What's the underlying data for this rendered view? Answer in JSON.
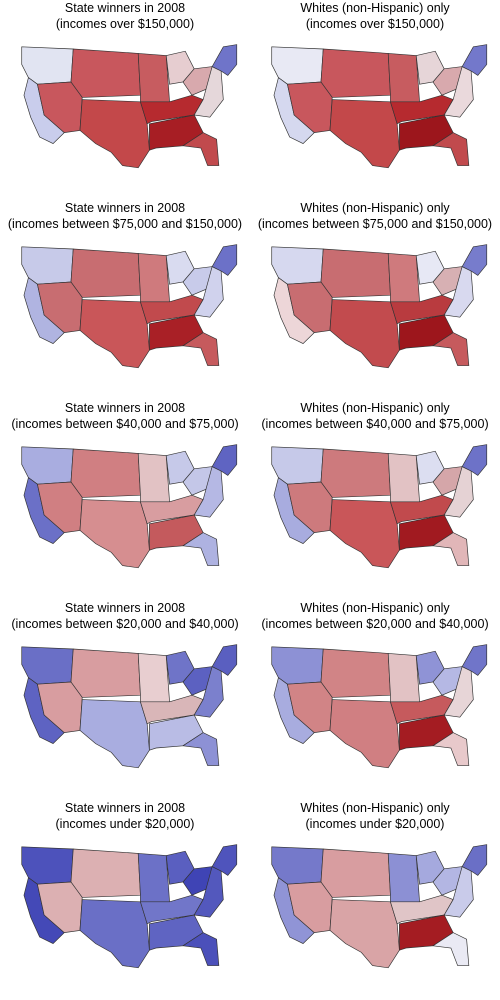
{
  "panels": [
    {
      "line1": "State winners in 2008",
      "line2": "(incomes over $150,000)",
      "c": {
        "west": "#e1e4f2",
        "cal": "#c9cdec",
        "mtn": "#c8575d",
        "plains": "#c75c60",
        "texas": "#c3484a",
        "mid": "#e6cdd0",
        "south": "#b62a2f",
        "deep": "#a71e24",
        "fl": "#c14a4d",
        "east": "#e5d7da",
        "ne": "#6f74c9",
        "gl": "#d8a9ad"
      }
    },
    {
      "line1": "Whites (non-Hispanic) only",
      "line2": "(incomes over $150,000)",
      "c": {
        "west": "#e8e9f4",
        "cal": "#d5d8ef",
        "mtn": "#c8575d",
        "plains": "#c75c60",
        "texas": "#c3484a",
        "mid": "#e6d5d8",
        "south": "#b62a2f",
        "deep": "#9c161c",
        "fl": "#c14a4d",
        "east": "#ead9dc",
        "ne": "#7378cb",
        "gl": "#d8a9ad"
      }
    },
    {
      "line1": "State winners in 2008",
      "line2": "(incomes between $75,000 and $150,000)",
      "c": {
        "west": "#c7cae9",
        "cal": "#b0b4e1",
        "mtn": "#c86d71",
        "plains": "#cf7a7d",
        "texas": "#c95659",
        "mid": "#d9dbf0",
        "south": "#c14a4d",
        "deep": "#a92026",
        "fl": "#c65a5d",
        "east": "#d0d2ed",
        "ne": "#6c71c8",
        "gl": "#c8cbea"
      }
    },
    {
      "line1": "Whites (non-Hispanic) only",
      "line2": "(incomes between $75,000 and $150,000)",
      "c": {
        "west": "#d6d8ef",
        "cal": "#edd6d8",
        "mtn": "#c86d71",
        "plains": "#cf7a7d",
        "texas": "#c24b4e",
        "mid": "#e7e8f5",
        "south": "#b93b3f",
        "deep": "#9d161c",
        "fl": "#c65a5d",
        "east": "#d8d9ef",
        "ne": "#777ccc",
        "gl": "#d7b0b3"
      }
    },
    {
      "line1": "State winners in 2008",
      "line2": "(incomes between $40,000 and $75,000)",
      "c": {
        "west": "#a9ade0",
        "cal": "#6b70c7",
        "mtn": "#d07f82",
        "plains": "#e2c2c4",
        "texas": "#d68e90",
        "mid": "#c6c9e9",
        "south": "#d89da0",
        "deep": "#c45a5d",
        "fl": "#aeb2e1",
        "east": "#b5b8e4",
        "ne": "#5f64c2",
        "gl": "#c4c7e8"
      }
    },
    {
      "line1": "Whites (non-Hispanic) only",
      "line2": "(incomes between $40,000 and $75,000)",
      "c": {
        "west": "#c6c9e9",
        "cal": "#a8acdf",
        "mtn": "#cd7a7d",
        "plains": "#e2c2c4",
        "texas": "#c95659",
        "mid": "#dcdef1",
        "south": "#c14a4d",
        "deep": "#a11a20",
        "fl": "#e1b6b8",
        "east": "#e5d2d4",
        "ne": "#6d72c8",
        "gl": "#d5a6a9"
      }
    },
    {
      "line1": "State winners in 2008",
      "line2": "(incomes between $20,000 and $40,000)",
      "c": {
        "west": "#6a6fc6",
        "cal": "#5e63c2",
        "mtn": "#d89da0",
        "plains": "#e8ced0",
        "texas": "#a9ade0",
        "mid": "#6f74c8",
        "south": "#d9b6b8",
        "deep": "#b9bce5",
        "fl": "#8d91d5",
        "east": "#7b80cd",
        "ne": "#5a5fc0",
        "gl": "#5c61c1"
      }
    },
    {
      "line1": "Whites (non-Hispanic) only",
      "line2": "(incomes between $20,000 and $40,000)",
      "c": {
        "west": "#8d91d5",
        "cal": "#a8acdf",
        "mtn": "#d18486",
        "plains": "#e2c2c4",
        "texas": "#d07f82",
        "mid": "#8f93d6",
        "south": "#c65a5d",
        "deep": "#a41c22",
        "fl": "#e8c9cb",
        "east": "#e7d5d7",
        "ne": "#7075c9",
        "gl": "#b5b8e4"
      }
    },
    {
      "line1": "State winners in 2008",
      "line2": "(incomes under $20,000)",
      "c": {
        "west": "#4d52bb",
        "cal": "#4449b7",
        "mtn": "#dcb0b2",
        "plains": "#6c71c7",
        "texas": "#6a6fc6",
        "mid": "#5a5fc0",
        "south": "#7176c9",
        "deep": "#5f64c2",
        "fl": "#4b50ba",
        "east": "#5358bd",
        "ne": "#4f54bc",
        "gl": "#3f44b5"
      }
    },
    {
      "line1": "Whites (non-Hispanic) only",
      "line2": "(incomes under $20,000)",
      "c": {
        "west": "#7579ca",
        "cal": "#9094d6",
        "mtn": "#d89da0",
        "plains": "#8c90d4",
        "texas": "#d9a4a6",
        "mid": "#a5a9de",
        "south": "#e0c5c7",
        "deep": "#a41c22",
        "fl": "#eaeaf4",
        "east": "#c9cbea",
        "ne": "#6a6fc6",
        "gl": "#b3b6e3"
      }
    }
  ]
}
